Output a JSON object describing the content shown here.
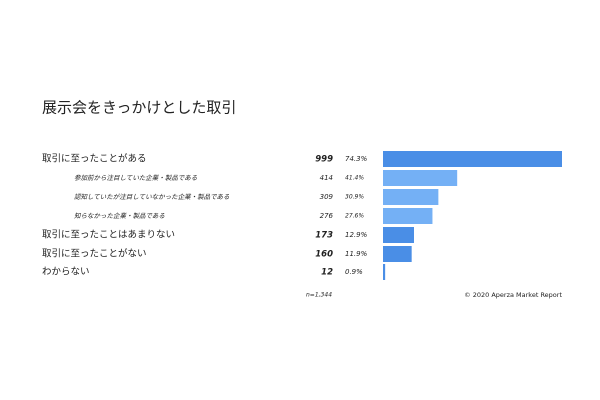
{
  "chart_data": {
    "type": "bar",
    "title": "展示会をきっかけとした取引",
    "categories": [
      "取引に至ったことがある",
      "参加前から注目していた企業・製品である",
      "認知していたが注目していなかった企業・製品である",
      "知らなかった企業・製品である",
      "取引に至ったことはあまりない",
      "取引に至ったことがない",
      "わからない"
    ],
    "levels": [
      0,
      1,
      1,
      1,
      0,
      0,
      0
    ],
    "values": [
      999,
      414,
      309,
      276,
      173,
      160,
      12
    ],
    "percent_labels": [
      "74.3%",
      "41.4%",
      "30.9%",
      "27.6%",
      "12.9%",
      "11.9%",
      "0.9%"
    ],
    "colors": [
      "#4a8ee6",
      "#74b0f5",
      "#74b0f5",
      "#74b0f5",
      "#4a8ee6",
      "#4a8ee6",
      "#4a8ee6"
    ],
    "sample_note": "n=1,344",
    "source": "© 2020 Aperza Market Report"
  }
}
